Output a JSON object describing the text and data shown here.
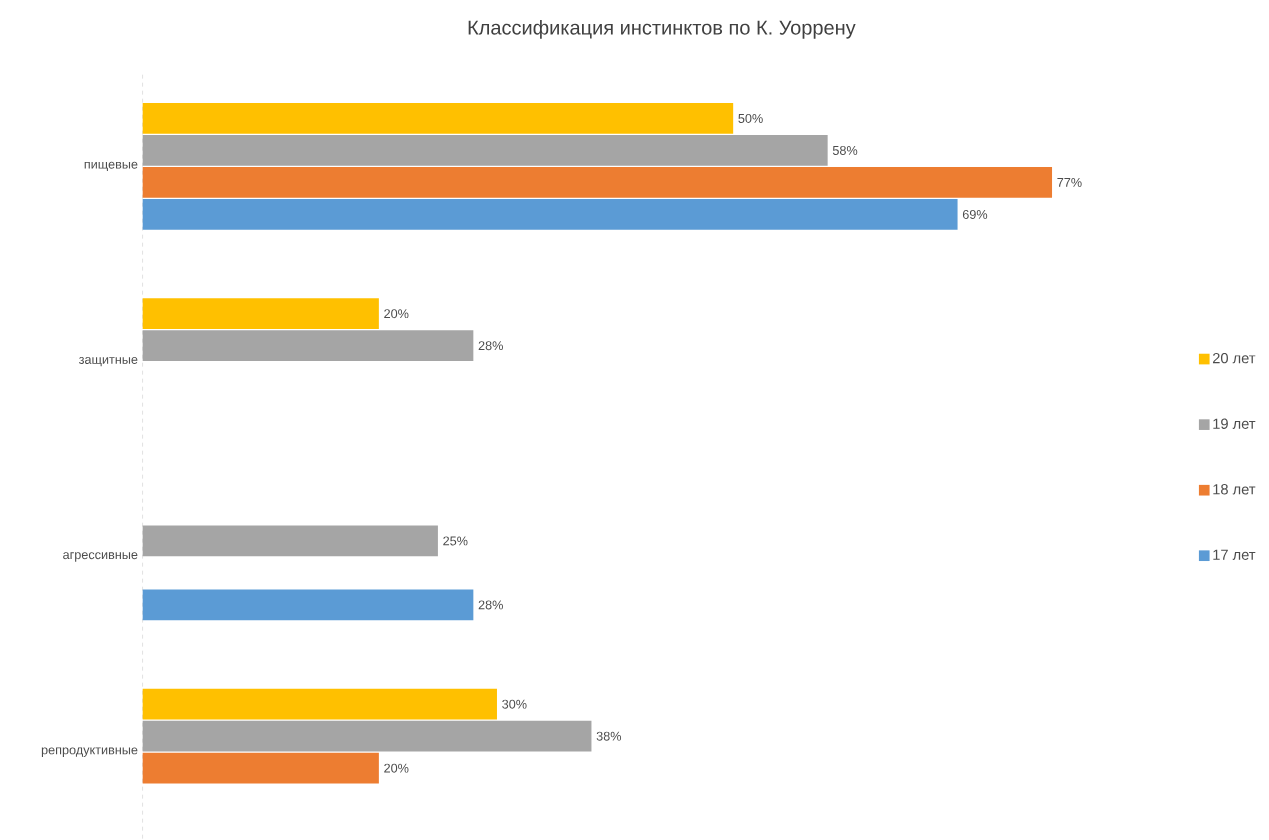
{
  "chart_data": {
    "type": "bar",
    "orientation": "horizontal",
    "title": "Классификация инстинктов по К. Уоррену",
    "categories": [
      "пищевые",
      "защитные",
      "агрессивные",
      "репродуктивные"
    ],
    "series": [
      {
        "name": "20 лет",
        "color": "#ffc000",
        "values": [
          50,
          20,
          null,
          30
        ],
        "value_labels": [
          "50%",
          "20%",
          null,
          "30%"
        ]
      },
      {
        "name": "19 лет",
        "color": "#a5a5a5",
        "values": [
          58,
          28,
          25,
          38
        ],
        "value_labels": [
          "58%",
          "28%",
          "25%",
          "38%"
        ]
      },
      {
        "name": "18 лет",
        "color": "#ed7d31",
        "values": [
          77,
          null,
          null,
          20
        ],
        "value_labels": [
          "77%",
          null,
          null,
          "20%"
        ]
      },
      {
        "name": "17 лет",
        "color": "#5b9bd5",
        "values": [
          69,
          null,
          28,
          null
        ],
        "value_labels": [
          "69%",
          null,
          "28%",
          null
        ]
      }
    ],
    "legend": "right"
  }
}
